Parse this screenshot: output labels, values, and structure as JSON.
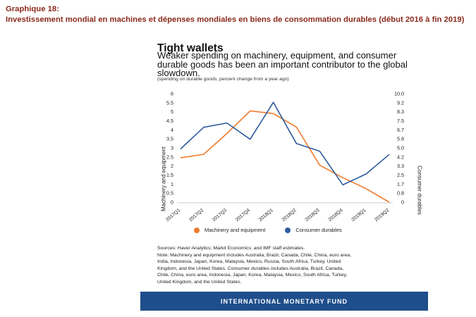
{
  "caption": {
    "label": "Graphique 18:",
    "text": "Investissement mondial en machines et dépenses mondiales en biens de consommation durables (début 2016 à fin 2019)"
  },
  "chart_title": "Tight wallets",
  "chart_subtitle": "Weaker spending on machinery, equipment, and consumer durable goods has been an important contributor to the global slowdown.",
  "unit_note": "(spending on durable goods, percent change from a year ago)",
  "colors": {
    "machinery": "#f07c2d",
    "consumer": "#2e5c9e",
    "footer": "#1f4e8c"
  },
  "chart_data": {
    "type": "line",
    "title": "Tight wallets",
    "categories": [
      "2017Q1",
      "2017Q2",
      "2017Q3",
      "2017Q4",
      "2018Q1",
      "2018Q2",
      "2018Q3",
      "2018Q4",
      "2019Q1",
      "2019Q2"
    ],
    "series": [
      {
        "name": "Machinery and equipment",
        "axis": "left",
        "values": [
          2.45,
          2.65,
          3.8,
          5.05,
          4.9,
          4.15,
          2.05,
          1.35,
          0.75,
          0.0
        ]
      },
      {
        "name": "Consumer durables",
        "axis": "right",
        "values": [
          4.9,
          6.9,
          7.3,
          5.8,
          9.2,
          5.4,
          4.7,
          1.6,
          2.6,
          4.4
        ]
      }
    ],
    "ylabel_left": "Machinery and equipment",
    "ylabel_right": "Consumer durables",
    "yticks_left": [
      "0",
      "0.5",
      "1",
      "1.5",
      "2",
      "2.5",
      "3",
      "3.5",
      "4",
      "4.5",
      "5",
      "5.5",
      "6"
    ],
    "yticks_right": [
      "0",
      "0.8",
      "1.7",
      "2.5",
      "3.3",
      "4.2",
      "5.0",
      "5.8",
      "6.7",
      "7.5",
      "8.3",
      "9.2",
      "10.0"
    ],
    "ylim_left": [
      0,
      6
    ],
    "ylim_right": [
      0,
      10
    ],
    "legend_position": "bottom",
    "grid": false
  },
  "notes": [
    "Sources: Haver Analytics; Markit Economics; and IMF staff estimates.",
    "Note: Machinery and equipment includes Australia, Brazil, Canada, Chile, China, euro area,",
    "India, Indonesia, Japan, Korea, Malaysia, Mexico, Russia, South Africa, Turkey, United",
    "Kingdom, and the United States. Consumer durables includes Australia, Brazil, Canada,",
    "Chile, China, euro area, Indonesia, Japan, Korea, Malaysia, Mexico, South Africa, Turkey,",
    "United Kingdom, and the United States."
  ],
  "footer": "INTERNATIONAL MONETARY FUND"
}
